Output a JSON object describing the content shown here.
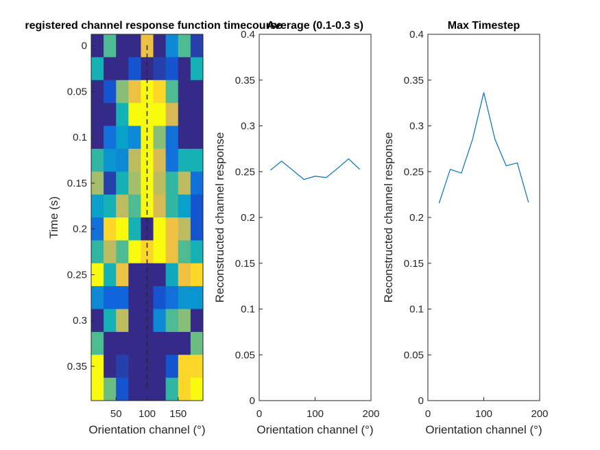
{
  "chart_data": [
    {
      "type": "heatmap",
      "title": "registered channel response function timecourse",
      "xlabel": "Orientation channel (°)",
      "ylabel": "Time (s)",
      "x_ticks": [
        50,
        100,
        150
      ],
      "y_ticks": [
        0,
        0.05,
        0.1,
        0.15,
        0.2,
        0.25,
        0.3,
        0.35
      ],
      "x": [
        20,
        40,
        60,
        80,
        100,
        120,
        140,
        160,
        180
      ],
      "y": [
        0,
        0.025,
        0.05,
        0.075,
        0.1,
        0.125,
        0.15,
        0.175,
        0.2,
        0.225,
        0.25,
        0.275,
        0.3,
        0.325,
        0.35,
        0.375
      ],
      "color_scale": "parula",
      "values": [
        [
          0.0,
          0.6,
          0.0,
          0.0,
          0.9,
          0.0,
          0.3,
          0.6,
          0.05
        ],
        [
          0.5,
          0.0,
          0.0,
          0.1,
          0.0,
          0.05,
          0.1,
          0.0,
          0.5
        ],
        [
          0.0,
          0.1,
          0.7,
          0.9,
          1.0,
          0.95,
          0.6,
          0.0,
          0.0
        ],
        [
          0.0,
          0.0,
          0.5,
          1.0,
          1.0,
          1.0,
          0.85,
          0.0,
          0.0
        ],
        [
          0.0,
          0.2,
          0.4,
          0.3,
          1.0,
          0.7,
          0.2,
          0.0,
          0.0
        ],
        [
          0.55,
          0.35,
          0.3,
          0.8,
          1.0,
          0.85,
          0.2,
          0.5,
          0.5
        ],
        [
          0.75,
          0.05,
          0.5,
          0.75,
          1.0,
          0.8,
          0.55,
          0.8,
          0.2
        ],
        [
          0.4,
          0.5,
          0.8,
          0.6,
          1.0,
          0.85,
          0.55,
          0.4,
          0.1
        ],
        [
          0.2,
          0.95,
          1.0,
          0.5,
          0.0,
          1.0,
          0.9,
          0.8,
          0.1
        ],
        [
          0.55,
          0.8,
          0.6,
          1.0,
          0.95,
          1.0,
          0.9,
          0.6,
          0.5
        ],
        [
          1.0,
          0.5,
          0.9,
          0.0,
          0.0,
          0.0,
          0.45,
          0.9,
          0.95
        ],
        [
          0.3,
          0.15,
          0.15,
          0.0,
          0.0,
          0.1,
          0.2,
          0.35,
          0.35
        ],
        [
          0.0,
          0.5,
          0.8,
          0.0,
          0.0,
          0.3,
          0.6,
          0.7,
          0.0
        ],
        [
          0.6,
          0.0,
          0.0,
          0.0,
          0.0,
          0.0,
          0.0,
          0.0,
          0.65
        ],
        [
          1.0,
          0.0,
          0.05,
          0.0,
          0.0,
          0.0,
          0.1,
          0.95,
          0.95
        ],
        [
          1.0,
          0.65,
          0.1,
          0.0,
          0.0,
          0.0,
          0.55,
          0.95,
          1.0
        ]
      ],
      "reference_line": {
        "x": 100,
        "style": "dashed"
      },
      "xlim": [
        10,
        190
      ],
      "ylim": [
        -0.0125,
        0.3875
      ],
      "y_reversed": true
    },
    {
      "type": "line",
      "title": "Average (0.1-0.3 s)",
      "xlabel": "Orientation channel (°)",
      "ylabel": "Reconstructed channel response",
      "x_ticks": [
        0,
        100,
        200
      ],
      "y_ticks": [
        0,
        0.05,
        0.1,
        0.15,
        0.2,
        0.25,
        0.3,
        0.35,
        0.4
      ],
      "xlim": [
        0,
        200
      ],
      "ylim": [
        0,
        0.4
      ],
      "color": "#0072BD",
      "x": [
        20,
        40,
        60,
        80,
        100,
        120,
        140,
        160,
        180
      ],
      "y": [
        0.2515,
        0.2615,
        0.2515,
        0.2415,
        0.245,
        0.2435,
        0.2535,
        0.264,
        0.2525
      ]
    },
    {
      "type": "line",
      "title": "Max Timestep",
      "xlabel": "Orientation channel (°)",
      "ylabel": "Reconstructed channel response",
      "x_ticks": [
        0,
        100,
        200
      ],
      "y_ticks": [
        0,
        0.05,
        0.1,
        0.15,
        0.2,
        0.25,
        0.3,
        0.35,
        0.4
      ],
      "xlim": [
        0,
        200
      ],
      "ylim": [
        0,
        0.4
      ],
      "color": "#0072BD",
      "x": [
        20,
        40,
        60,
        80,
        100,
        120,
        140,
        160,
        180
      ],
      "y": [
        0.2155,
        0.2525,
        0.2485,
        0.2855,
        0.3365,
        0.2855,
        0.2565,
        0.2595,
        0.2165
      ]
    }
  ]
}
